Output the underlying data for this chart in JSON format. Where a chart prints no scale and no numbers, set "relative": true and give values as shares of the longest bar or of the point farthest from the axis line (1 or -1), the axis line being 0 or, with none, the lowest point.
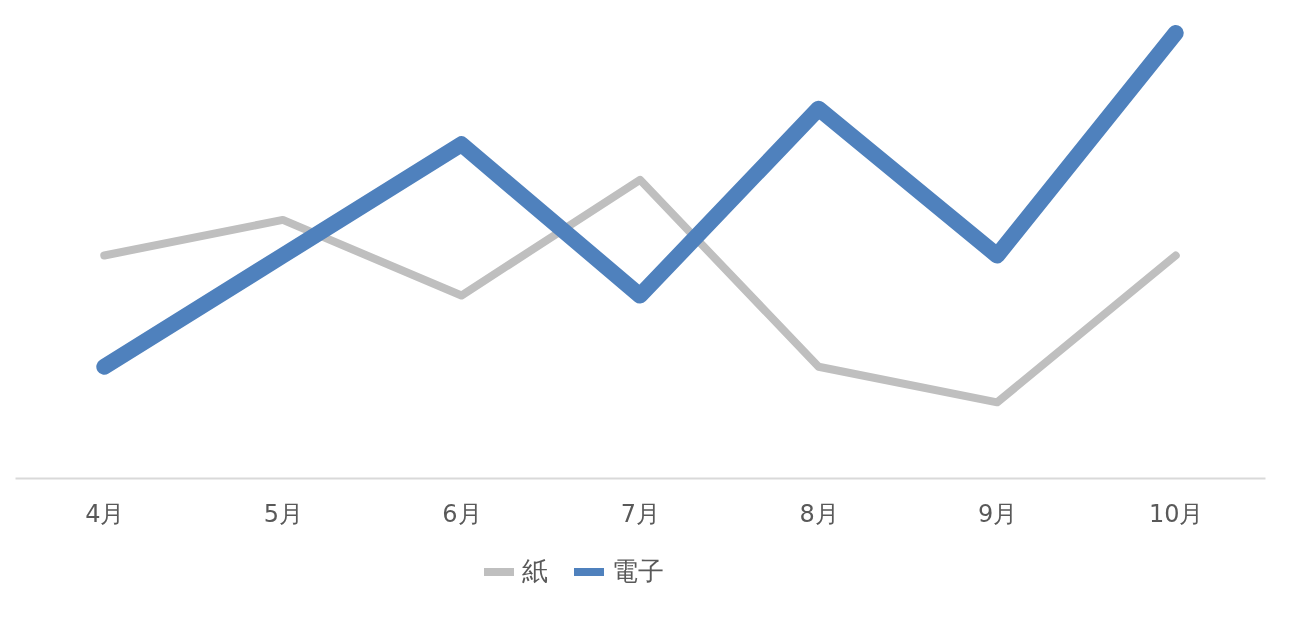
{
  "chart_data": {
    "type": "line",
    "relative": true,
    "categories": [
      "4月",
      "5月",
      "6月",
      "7月",
      "8月",
      "9月",
      "10月"
    ],
    "series": [
      {
        "name": "紙",
        "color": "#bfbfbf",
        "values": [
          0.5,
          0.58,
          0.41,
          0.67,
          0.25,
          0.17,
          0.5
        ]
      },
      {
        "name": "電子",
        "color": "#4f81bd",
        "values": [
          0.25,
          0.5,
          0.75,
          0.41,
          0.83,
          0.5,
          1.0
        ]
      }
    ],
    "legend": "bottom",
    "grid": false,
    "line_style": "solid"
  }
}
